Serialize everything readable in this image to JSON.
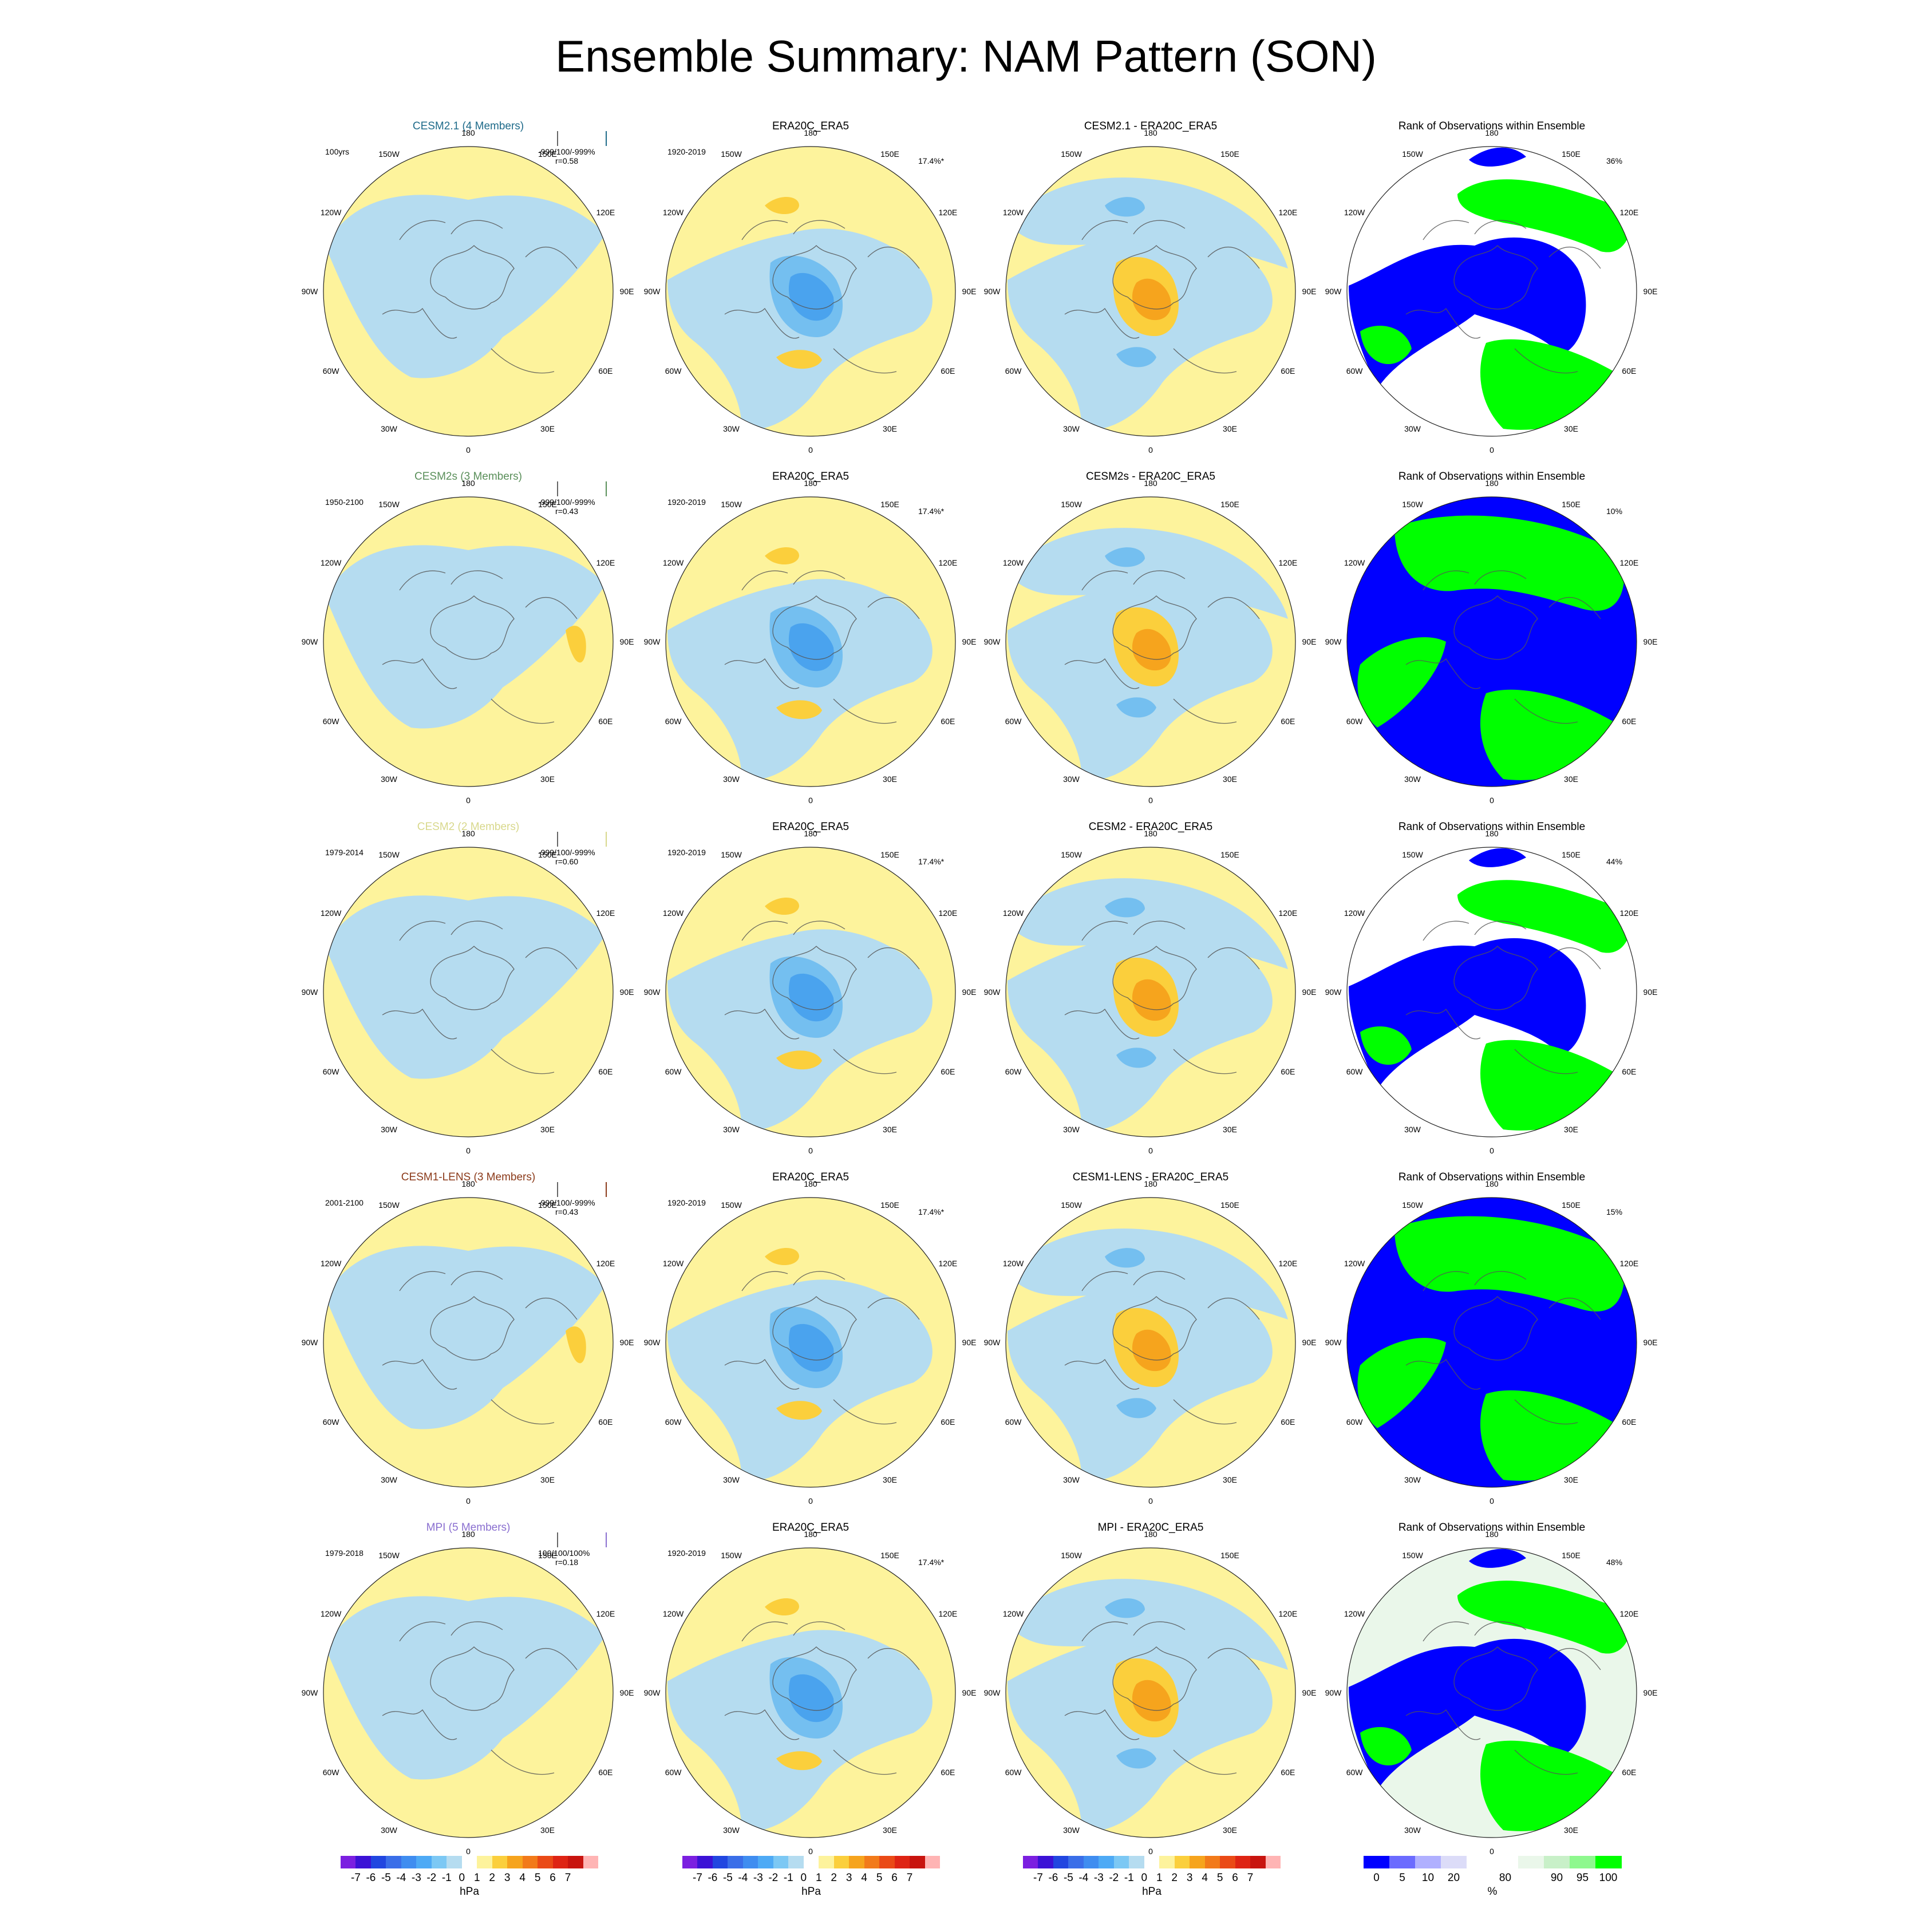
{
  "title": "Ensemble Summary: NAM Pattern (SON)",
  "lon_labels": [
    "180",
    "150E",
    "120E",
    "90E",
    "60E",
    "30E",
    "0",
    "30W",
    "60W",
    "90W",
    "120W",
    "150W"
  ],
  "colors": {
    "land_lines": "#555555",
    "neg_light": "#b5dcf0",
    "neg_mid": "#74bff0",
    "neg_strong": "#4aa3ee",
    "pos_light": "#fdf39c",
    "pos_mid": "#fbcf3c",
    "pos_strong": "#f6a41d",
    "rank_low": "#0000ff",
    "rank_high": "#00ff00",
    "rank_mid": "#eaf7ea"
  },
  "rows": [
    {
      "model": {
        "title": "CESM2.1 (4 Members)",
        "title_color": "#1f6b8a",
        "years": "100yrs",
        "stats1": "-999/100/-999%",
        "stats2": "r=0.58",
        "bar_color": "#1f6b8a"
      },
      "obs": {
        "title": "ERA20C_ERA5",
        "years": "1920-2019",
        "pct": "17.4%*"
      },
      "diff": {
        "title": "CESM2.1 - ERA20C_ERA5"
      },
      "rank": {
        "title": "Rank of Observations within Ensemble",
        "pct": "36%"
      }
    },
    {
      "model": {
        "title": "CESM2s (3 Members)",
        "title_color": "#5a8f5a",
        "years": "1950-2100",
        "stats1": "-999/100/-999%",
        "stats2": "r=0.43",
        "bar_color": "#5a8f5a"
      },
      "obs": {
        "title": "ERA20C_ERA5",
        "years": "1920-2019",
        "pct": "17.4%*"
      },
      "diff": {
        "title": "CESM2s - ERA20C_ERA5"
      },
      "rank": {
        "title": "Rank of Observations within Ensemble",
        "pct": "10%"
      }
    },
    {
      "model": {
        "title": "CESM2 (2 Members)",
        "title_color": "#d8d88c",
        "years": "1979-2014",
        "stats1": "-999/100/-999%",
        "stats2": "r=0.60",
        "bar_color": "#d8d88c"
      },
      "obs": {
        "title": "ERA20C_ERA5",
        "years": "1920-2019",
        "pct": "17.4%*"
      },
      "diff": {
        "title": "CESM2 - ERA20C_ERA5"
      },
      "rank": {
        "title": "Rank of Observations within Ensemble",
        "pct": "44%"
      }
    },
    {
      "model": {
        "title": "CESM1-LENS (3 Members)",
        "title_color": "#8b3a1a",
        "years": "2001-2100",
        "stats1": "-999/100/-999%",
        "stats2": "r=0.43",
        "bar_color": "#8b3a1a"
      },
      "obs": {
        "title": "ERA20C_ERA5",
        "years": "1920-2019",
        "pct": "17.4%*"
      },
      "diff": {
        "title": "CESM1-LENS - ERA20C_ERA5"
      },
      "rank": {
        "title": "Rank of Observations within Ensemble",
        "pct": "15%"
      }
    },
    {
      "model": {
        "title": "MPI (5 Members)",
        "title_color": "#8a6fd0",
        "years": "1979-2018",
        "stats1": "100/100/100%",
        "stats2": "r=0.18",
        "bar_color": "#8a6fd0"
      },
      "obs": {
        "title": "ERA20C_ERA5",
        "years": "1920-2019",
        "pct": "17.4%*"
      },
      "diff": {
        "title": "MPI - ERA20C_ERA5"
      },
      "rank": {
        "title": "Rank of Observations within Ensemble",
        "pct": "48%"
      }
    }
  ],
  "colorbars": {
    "hpa": {
      "colors": [
        "#7b1fe0",
        "#3b12d6",
        "#2146e0",
        "#3a6ee8",
        "#3f8df0",
        "#4eaaf5",
        "#7cc8f4",
        "#b5dcf0",
        "#ffffff",
        "#fdf39c",
        "#fbcf3c",
        "#f6a41d",
        "#f27a1a",
        "#ea4a16",
        "#de2414",
        "#c8140f",
        "#ffb4b4"
      ],
      "ticks": [
        "-7",
        "-6",
        "-5",
        "-4",
        "-3",
        "-2",
        "-1",
        "0",
        "1",
        "2",
        "3",
        "4",
        "5",
        "6",
        "7"
      ],
      "unit": "hPa"
    },
    "pct": {
      "colors": [
        "#0000ff",
        "#6b6bff",
        "#b0b0ff",
        "#dcdcf8",
        "#ffffff",
        "#ffffff",
        "#eaf7ea",
        "#c8f0c8",
        "#8ef88e",
        "#00ff00"
      ],
      "ticks": [
        "0",
        "5",
        "10",
        "20",
        "80",
        "90",
        "95",
        "100"
      ],
      "tick_units": [
        0.5,
        1.5,
        2.5,
        3.5,
        5.5,
        7.5,
        8.5,
        9.5
      ],
      "unit": "%"
    }
  },
  "chart_data": {
    "type": "heatmap",
    "title": "Ensemble Summary: NAM Pattern (SON)",
    "projection": "north polar stereographic",
    "panels_per_row": [
      "model ensemble NAM pattern",
      "observed NAM pattern",
      "model minus observations",
      "rank of observations within ensemble"
    ],
    "rows": [
      "CESM2.1",
      "CESM2s",
      "CESM2",
      "CESM1-LENS",
      "MPI"
    ],
    "colorbar_levels_hPa": [
      -7,
      -6,
      -5,
      -4,
      -3,
      -2,
      -1,
      0,
      1,
      2,
      3,
      4,
      5,
      6,
      7
    ],
    "colorbar_levels_pct": [
      0,
      5,
      10,
      20,
      80,
      90,
      95,
      100
    ],
    "pattern_explained_variance_obs": "17.4%",
    "rank_pct_by_row": [
      36,
      10,
      44,
      15,
      48
    ],
    "pattern_correlation_by_row": [
      0.58,
      0.43,
      0.6,
      0.43,
      0.18
    ]
  }
}
